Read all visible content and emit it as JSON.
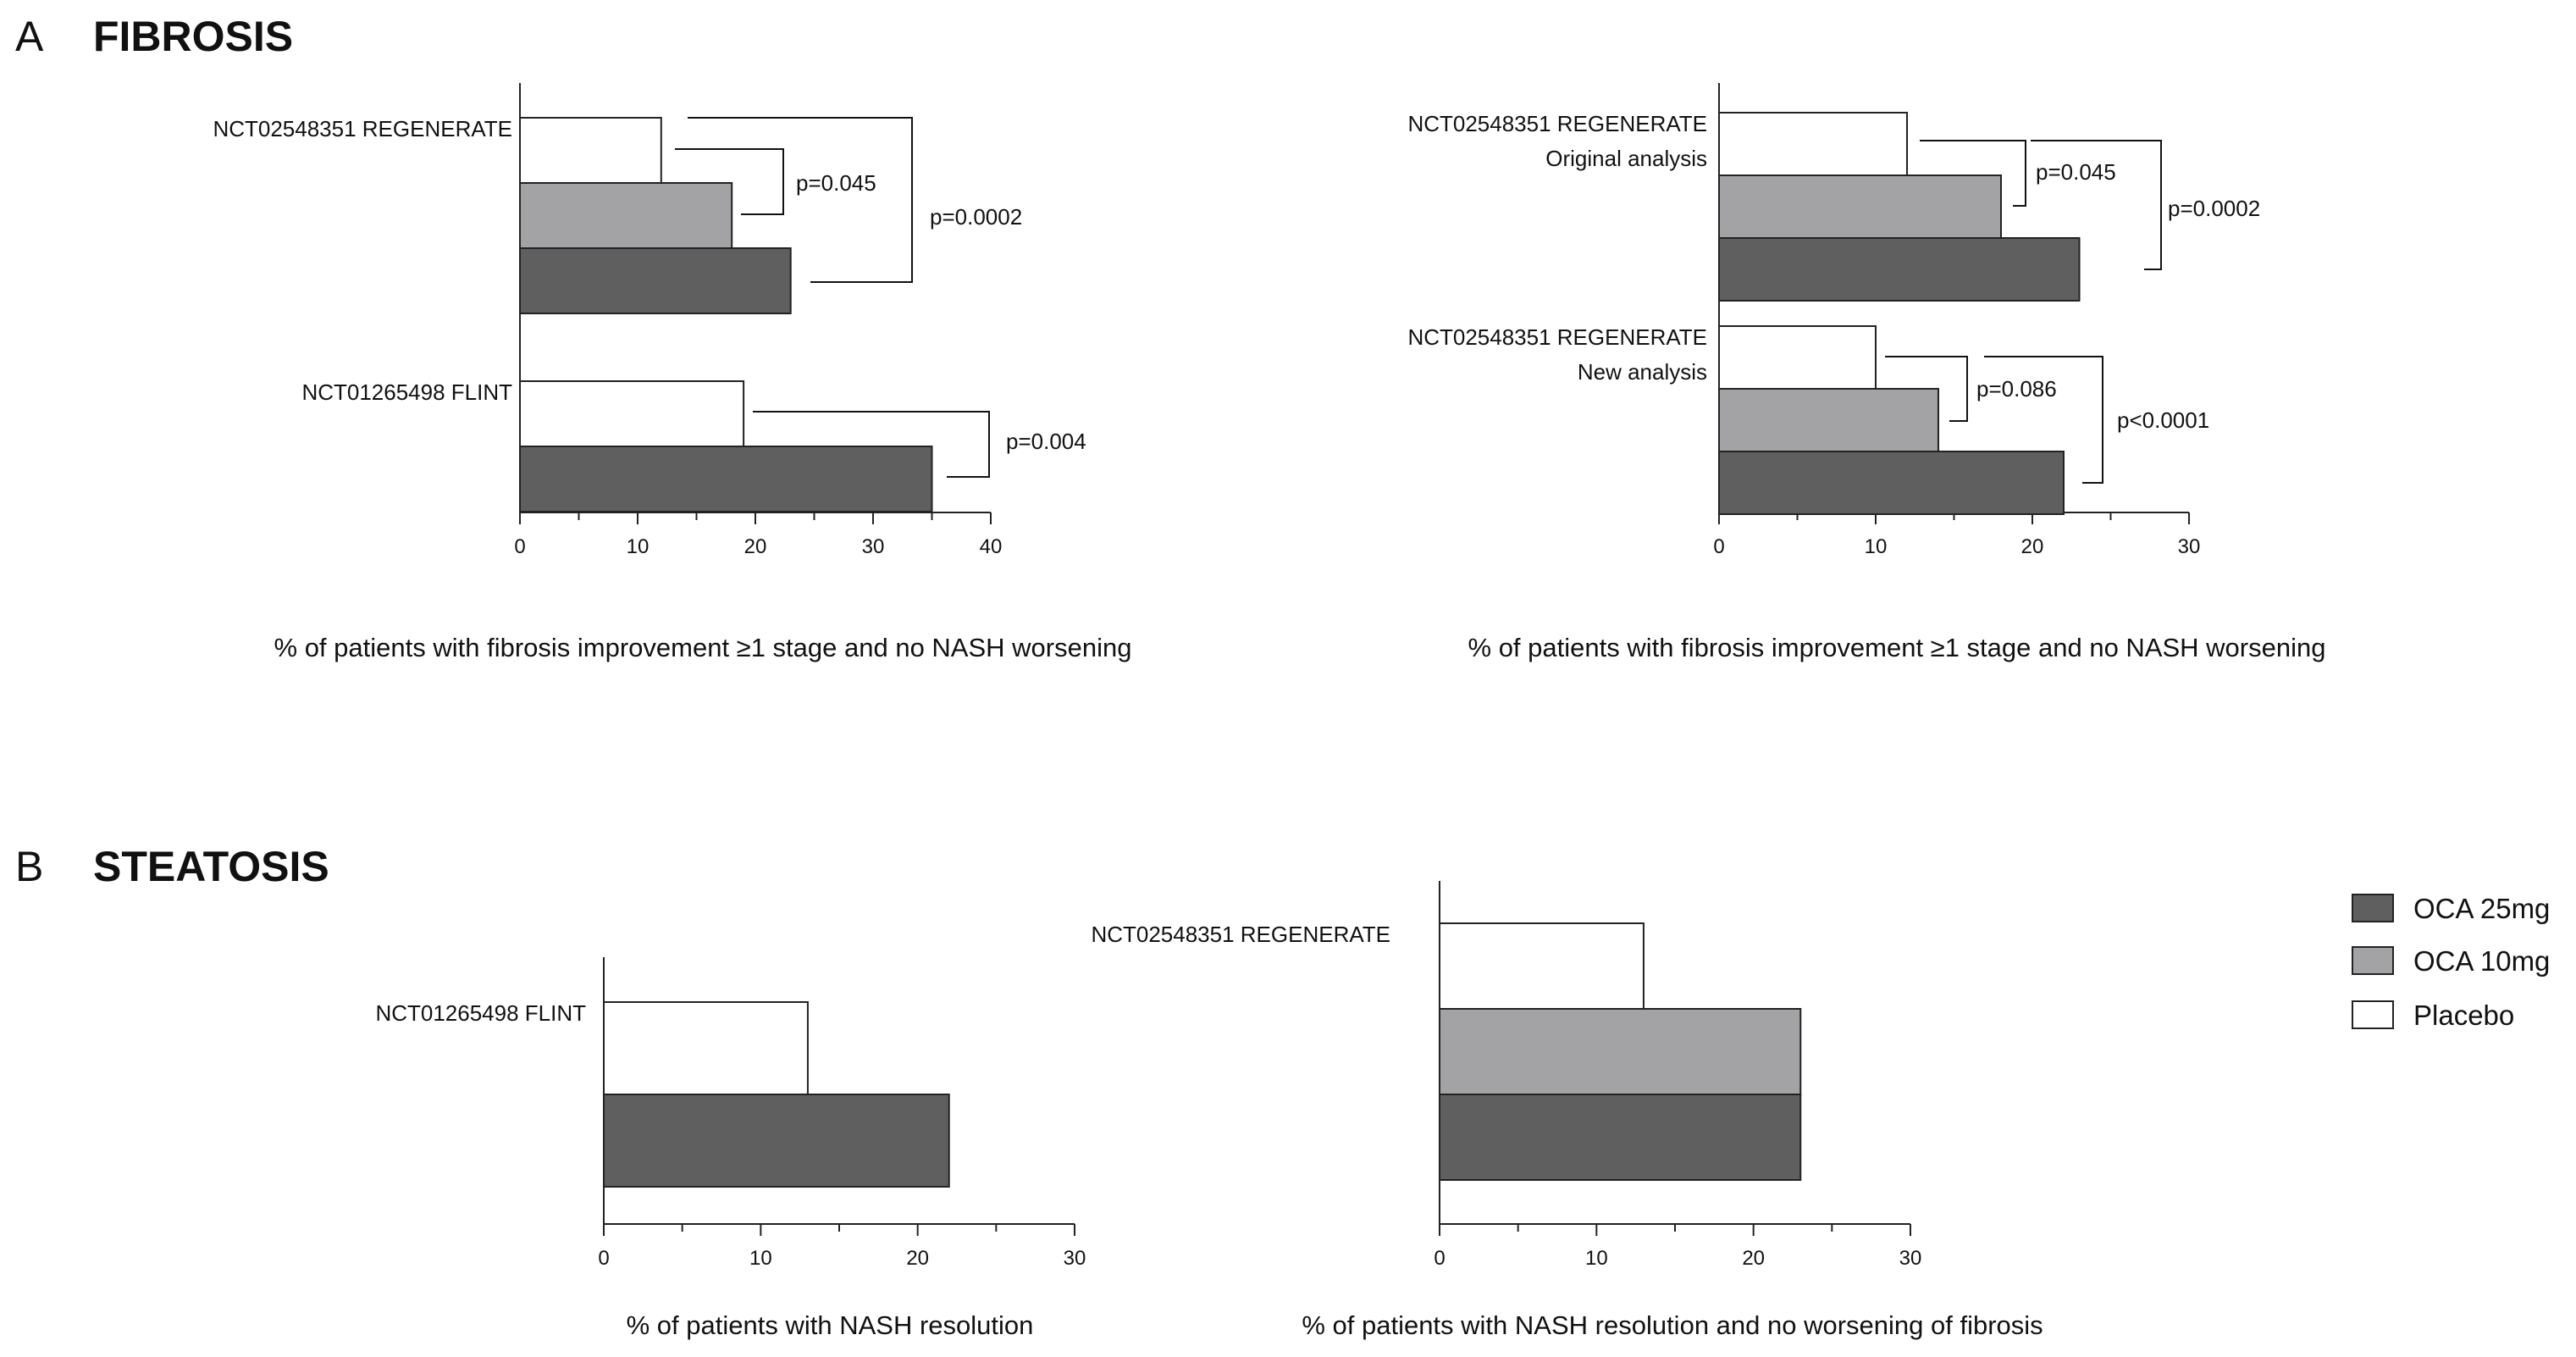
{
  "section_a": {
    "letter": "A",
    "title": "FIBROSIS"
  },
  "section_b": {
    "letter": "B",
    "title": "STEATOSIS"
  },
  "legend": {
    "items": [
      {
        "label": "OCA 25mg",
        "color": "#5f5f5f"
      },
      {
        "label": "OCA 10mg",
        "color": "#a3a3a6"
      },
      {
        "label": "Placebo",
        "color": "#ffffff"
      }
    ]
  },
  "chart_data": [
    {
      "type": "bar",
      "orientation": "horizontal",
      "xlabel": "% of patients with fibrosis improvement ≥1 stage and no NASH worsening",
      "xlim": [
        0,
        40
      ],
      "xticks": [
        0,
        10,
        20,
        30,
        40
      ],
      "groups": [
        {
          "label": "NCT02548351 REGENERATE",
          "bars": [
            {
              "series": "Placebo",
              "value": 12
            },
            {
              "series": "OCA 10mg",
              "value": 18
            },
            {
              "series": "OCA 25mg",
              "value": 23
            }
          ]
        },
        {
          "label": "NCT01265498 FLINT",
          "bars": [
            {
              "series": "Placebo",
              "value": 19
            },
            {
              "series": "OCA 25mg",
              "value": 35
            }
          ]
        }
      ],
      "annotations": [
        "p=0.045",
        "p=0.0002",
        "p=0.004"
      ]
    },
    {
      "type": "bar",
      "orientation": "horizontal",
      "xlabel": "% of patients with fibrosis improvement ≥1 stage and no NASH worsening",
      "xlim": [
        0,
        30
      ],
      "xticks": [
        0,
        10,
        20,
        30
      ],
      "groups": [
        {
          "label": "NCT02548351 REGENERATE",
          "sublabel": "Original analysis",
          "bars": [
            {
              "series": "Placebo",
              "value": 12
            },
            {
              "series": "OCA 10mg",
              "value": 18
            },
            {
              "series": "OCA 25mg",
              "value": 23
            }
          ]
        },
        {
          "label": "NCT02548351 REGENERATE",
          "sublabel": "New analysis",
          "bars": [
            {
              "series": "Placebo",
              "value": 10
            },
            {
              "series": "OCA 10mg",
              "value": 14
            },
            {
              "series": "OCA 25mg",
              "value": 22
            }
          ]
        }
      ],
      "annotations": [
        "p=0.045",
        "p=0.0002",
        "p=0.086",
        "p<0.0001"
      ]
    },
    {
      "type": "bar",
      "orientation": "horizontal",
      "xlabel": "% of patients with NASH resolution",
      "xlim": [
        0,
        30
      ],
      "xticks": [
        0,
        10,
        20,
        30
      ],
      "groups": [
        {
          "label": "NCT01265498 FLINT",
          "bars": [
            {
              "series": "Placebo",
              "value": 13
            },
            {
              "series": "OCA 25mg",
              "value": 22
            }
          ]
        }
      ]
    },
    {
      "type": "bar",
      "orientation": "horizontal",
      "xlabel": "% of patients with NASH resolution and no worsening of fibrosis",
      "xlim": [
        0,
        30
      ],
      "xticks": [
        0,
        10,
        20,
        30
      ],
      "groups": [
        {
          "label": "NCT02548351 REGENERATE",
          "bars": [
            {
              "series": "Placebo",
              "value": 13
            },
            {
              "series": "OCA 10mg",
              "value": 23
            },
            {
              "series": "OCA 25mg",
              "value": 23
            }
          ]
        }
      ]
    }
  ]
}
